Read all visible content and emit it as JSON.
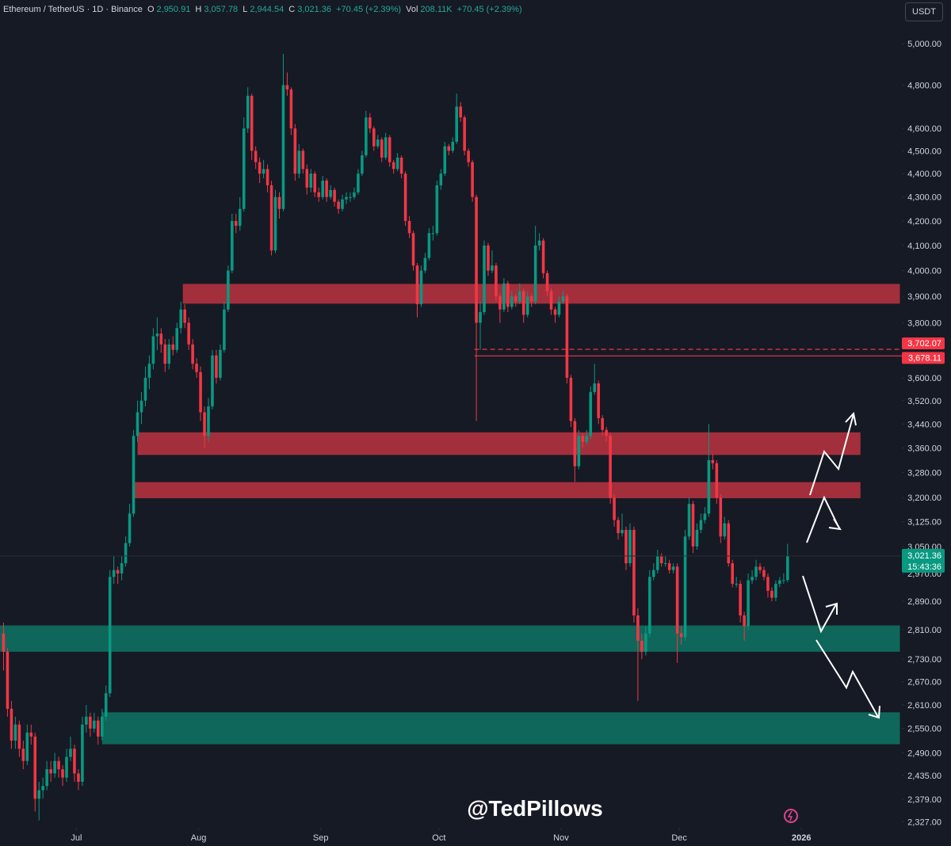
{
  "header": {
    "symbol": "Ethereum / TetherUS · 1D · Binance",
    "open_key": "O",
    "open": "2,950.91",
    "high_key": "H",
    "high": "3,057.78",
    "low_key": "L",
    "low": "2,944.54",
    "close_key": "C",
    "close": "3,021.36",
    "change": "+70.45 (+2.39%)",
    "vol_key": "Vol",
    "vol": "208.11K",
    "vol_change": "+70.45 (+2.39%)"
  },
  "currency_button": "USDT",
  "watermark": "@TedPillows",
  "chart_data": {
    "type": "candlestick",
    "log_scale": true,
    "up_color": "#089981",
    "down_color": "#f23645",
    "xlim": [
      -0.4,
      228.5
    ],
    "ylim": [
      2313,
      5219
    ],
    "xticks": [
      {
        "value": 19,
        "label": "Jul"
      },
      {
        "value": 50,
        "label": "Aug"
      },
      {
        "value": 81,
        "label": "Sep"
      },
      {
        "value": 111,
        "label": "Oct"
      },
      {
        "value": 142,
        "label": "Nov"
      },
      {
        "value": 172,
        "label": "Dec"
      },
      {
        "value": 203,
        "label": "2026"
      }
    ],
    "yticks": [
      {
        "value": 5000,
        "label": "5,000.00"
      },
      {
        "value": 4800,
        "label": "4,800.00"
      },
      {
        "value": 4600,
        "label": "4,600.00"
      },
      {
        "value": 4500,
        "label": "4,500.00"
      },
      {
        "value": 4400,
        "label": "4,400.00"
      },
      {
        "value": 4300,
        "label": "4,300.00"
      },
      {
        "value": 4200,
        "label": "4,200.00"
      },
      {
        "value": 4100,
        "label": "4,100.00"
      },
      {
        "value": 4000,
        "label": "4,000.00"
      },
      {
        "value": 3900,
        "label": "3,900.00"
      },
      {
        "value": 3800,
        "label": "3,800.00"
      },
      {
        "value": 3600,
        "label": "3,600.00"
      },
      {
        "value": 3520,
        "label": "3,520.00"
      },
      {
        "value": 3440,
        "label": "3,440.00"
      },
      {
        "value": 3360,
        "label": "3,360.00"
      },
      {
        "value": 3280,
        "label": "3,280.00"
      },
      {
        "value": 3200,
        "label": "3,200.00"
      },
      {
        "value": 3125,
        "label": "3,125.00"
      },
      {
        "value": 3050,
        "label": "3,050.00"
      },
      {
        "value": 2970,
        "label": "2,970.00"
      },
      {
        "value": 2890,
        "label": "2,890.00"
      },
      {
        "value": 2810,
        "label": "2,810.00"
      },
      {
        "value": 2730,
        "label": "2,730.00"
      },
      {
        "value": 2670,
        "label": "2,670.00"
      },
      {
        "value": 2610,
        "label": "2,610.00"
      },
      {
        "value": 2550,
        "label": "2,550.00"
      },
      {
        "value": 2490,
        "label": "2,490.00"
      },
      {
        "value": 2435,
        "label": "2,435.00"
      },
      {
        "value": 2379,
        "label": "2,379.00"
      },
      {
        "value": 2327,
        "label": "2,327.00"
      }
    ],
    "zones": [
      {
        "low": 3872,
        "high": 3948,
        "color": "#b2323f",
        "start": 46,
        "end": 228
      },
      {
        "low": 3337,
        "high": 3412,
        "color": "#b2323f",
        "start": 34.5,
        "end": 218
      },
      {
        "low": 3198,
        "high": 3249,
        "color": "#b2323f",
        "start": 33.5,
        "end": 218
      },
      {
        "low": 2750,
        "high": 2822,
        "color": "#0d7060",
        "start": -0.4,
        "end": 228
      },
      {
        "low": 2511,
        "high": 2591,
        "color": "#0d7060",
        "start": 25.5,
        "end": 228
      }
    ],
    "levels": [
      {
        "value": 3702.07,
        "label": "3,702.07",
        "style": "dashed",
        "start": 120
      },
      {
        "value": 3678.11,
        "label": "3,678.11",
        "style": "solid",
        "start": 120
      }
    ],
    "last_price": {
      "value": 3021.36,
      "label": "3,021.36",
      "countdown": "15:43:36"
    },
    "candles": [
      [
        2800,
        2830,
        2700,
        2750
      ],
      [
        2750,
        2760,
        2580,
        2600
      ],
      [
        2600,
        2620,
        2500,
        2520
      ],
      [
        2520,
        2580,
        2500,
        2560
      ],
      [
        2560,
        2570,
        2480,
        2500
      ],
      [
        2500,
        2520,
        2450,
        2470
      ],
      [
        2470,
        2560,
        2460,
        2540
      ],
      [
        2540,
        2560,
        2510,
        2530
      ],
      [
        2530,
        2540,
        2350,
        2380
      ],
      [
        2380,
        2420,
        2330,
        2400
      ],
      [
        2400,
        2430,
        2380,
        2410
      ],
      [
        2410,
        2470,
        2400,
        2450
      ],
      [
        2450,
        2470,
        2420,
        2440
      ],
      [
        2440,
        2490,
        2430,
        2470
      ],
      [
        2470,
        2480,
        2430,
        2450
      ],
      [
        2450,
        2460,
        2410,
        2430
      ],
      [
        2430,
        2500,
        2420,
        2480
      ],
      [
        2480,
        2530,
        2470,
        2500
      ],
      [
        2500,
        2510,
        2420,
        2440
      ],
      [
        2440,
        2450,
        2400,
        2420
      ],
      [
        2420,
        2580,
        2410,
        2560
      ],
      [
        2560,
        2610,
        2540,
        2580
      ],
      [
        2580,
        2590,
        2530,
        2550
      ],
      [
        2550,
        2590,
        2540,
        2570
      ],
      [
        2570,
        2580,
        2510,
        2530
      ],
      [
        2530,
        2600,
        2520,
        2580
      ],
      [
        2580,
        2660,
        2570,
        2640
      ],
      [
        2640,
        2980,
        2630,
        2960
      ],
      [
        2960,
        3020,
        2940,
        2980
      ],
      [
        2980,
        2990,
        2940,
        2970
      ],
      [
        2970,
        3020,
        2950,
        3000
      ],
      [
        3000,
        3080,
        2990,
        3060
      ],
      [
        3060,
        3180,
        3050,
        3150
      ],
      [
        3150,
        3420,
        3140,
        3400
      ],
      [
        3400,
        3520,
        3380,
        3480
      ],
      [
        3480,
        3550,
        3440,
        3520
      ],
      [
        3520,
        3640,
        3500,
        3600
      ],
      [
        3600,
        3680,
        3560,
        3650
      ],
      [
        3650,
        3780,
        3630,
        3750
      ],
      [
        3750,
        3820,
        3700,
        3760
      ],
      [
        3760,
        3780,
        3690,
        3720
      ],
      [
        3720,
        3740,
        3620,
        3650
      ],
      [
        3650,
        3740,
        3630,
        3720
      ],
      [
        3720,
        3750,
        3680,
        3700
      ],
      [
        3700,
        3800,
        3690,
        3780
      ],
      [
        3780,
        3880,
        3760,
        3850
      ],
      [
        3850,
        3870,
        3780,
        3800
      ],
      [
        3800,
        3820,
        3700,
        3720
      ],
      [
        3720,
        3740,
        3630,
        3650
      ],
      [
        3650,
        3670,
        3600,
        3620
      ],
      [
        3620,
        3640,
        3450,
        3480
      ],
      [
        3480,
        3500,
        3360,
        3400
      ],
      [
        3400,
        3530,
        3380,
        3500
      ],
      [
        3500,
        3700,
        3490,
        3680
      ],
      [
        3680,
        3700,
        3580,
        3600
      ],
      [
        3600,
        3720,
        3590,
        3700
      ],
      [
        3700,
        3880,
        3690,
        3850
      ],
      [
        3850,
        4020,
        3840,
        4000
      ],
      [
        4000,
        4230,
        3990,
        4200
      ],
      [
        4200,
        4230,
        4150,
        4180
      ],
      [
        4180,
        4300,
        4160,
        4250
      ],
      [
        4250,
        4650,
        4240,
        4600
      ],
      [
        4600,
        4790,
        4580,
        4750
      ],
      [
        4750,
        4760,
        4460,
        4500
      ],
      [
        4500,
        4520,
        4420,
        4450
      ],
      [
        4450,
        4470,
        4360,
        4400
      ],
      [
        4400,
        4460,
        4380,
        4420
      ],
      [
        4420,
        4440,
        4320,
        4350
      ],
      [
        4350,
        4370,
        4060,
        4080
      ],
      [
        4080,
        4330,
        4070,
        4300
      ],
      [
        4300,
        4320,
        4210,
        4250
      ],
      [
        4250,
        4950,
        4240,
        4800
      ],
      [
        4800,
        4860,
        4750,
        4780
      ],
      [
        4780,
        4790,
        4570,
        4600
      ],
      [
        4600,
        4620,
        4370,
        4400
      ],
      [
        4400,
        4530,
        4380,
        4500
      ],
      [
        4500,
        4510,
        4400,
        4420
      ],
      [
        4420,
        4440,
        4310,
        4340
      ],
      [
        4340,
        4420,
        4320,
        4400
      ],
      [
        4400,
        4410,
        4300,
        4320
      ],
      [
        4320,
        4340,
        4280,
        4300
      ],
      [
        4300,
        4390,
        4290,
        4370
      ],
      [
        4370,
        4380,
        4280,
        4300
      ],
      [
        4300,
        4350,
        4290,
        4330
      ],
      [
        4330,
        4340,
        4260,
        4280
      ],
      [
        4280,
        4290,
        4230,
        4250
      ],
      [
        4250,
        4310,
        4240,
        4290
      ],
      [
        4290,
        4320,
        4270,
        4300
      ],
      [
        4300,
        4320,
        4280,
        4300
      ],
      [
        4300,
        4340,
        4290,
        4320
      ],
      [
        4320,
        4420,
        4310,
        4400
      ],
      [
        4400,
        4500,
        4390,
        4480
      ],
      [
        4480,
        4680,
        4470,
        4650
      ],
      [
        4650,
        4670,
        4580,
        4600
      ],
      [
        4600,
        4610,
        4500,
        4520
      ],
      [
        4520,
        4570,
        4510,
        4550
      ],
      [
        4550,
        4560,
        4450,
        4470
      ],
      [
        4470,
        4580,
        4460,
        4560
      ],
      [
        4560,
        4570,
        4430,
        4450
      ],
      [
        4450,
        4460,
        4400,
        4420
      ],
      [
        4420,
        4490,
        4410,
        4470
      ],
      [
        4470,
        4480,
        4380,
        4400
      ],
      [
        4400,
        4410,
        4180,
        4200
      ],
      [
        4200,
        4220,
        4130,
        4150
      ],
      [
        4150,
        4160,
        4000,
        4020
      ],
      [
        4020,
        4030,
        3820,
        3870
      ],
      [
        3870,
        4020,
        3860,
        4000
      ],
      [
        4000,
        4070,
        3990,
        4050
      ],
      [
        4050,
        4170,
        4040,
        4150
      ],
      [
        4150,
        4180,
        4120,
        4150
      ],
      [
        4150,
        4370,
        4140,
        4350
      ],
      [
        4350,
        4420,
        4330,
        4400
      ],
      [
        4400,
        4540,
        4390,
        4520
      ],
      [
        4520,
        4530,
        4480,
        4500
      ],
      [
        4500,
        4560,
        4490,
        4540
      ],
      [
        4540,
        4760,
        4530,
        4700
      ],
      [
        4700,
        4720,
        4630,
        4650
      ],
      [
        4650,
        4660,
        4480,
        4500
      ],
      [
        4500,
        4510,
        4430,
        4450
      ],
      [
        4450,
        4460,
        4280,
        4300
      ],
      [
        4300,
        4310,
        3450,
        3800
      ],
      [
        3800,
        3880,
        3700,
        3840
      ],
      [
        3840,
        4120,
        3830,
        4100
      ],
      [
        4100,
        4110,
        3980,
        4000
      ],
      [
        4000,
        4080,
        3990,
        4020
      ],
      [
        4020,
        4030,
        3880,
        3900
      ],
      [
        3900,
        3910,
        3800,
        3850
      ],
      [
        3850,
        3970,
        3840,
        3950
      ],
      [
        3950,
        3960,
        3840,
        3860
      ],
      [
        3860,
        3920,
        3850,
        3900
      ],
      [
        3900,
        3910,
        3860,
        3880
      ],
      [
        3880,
        3950,
        3870,
        3920
      ],
      [
        3920,
        3930,
        3800,
        3830
      ],
      [
        3830,
        3920,
        3820,
        3900
      ],
      [
        3900,
        3910,
        3860,
        3880
      ],
      [
        3880,
        4180,
        3870,
        4100
      ],
      [
        4100,
        4150,
        4080,
        4120
      ],
      [
        4120,
        4130,
        3970,
        3990
      ],
      [
        3990,
        4000,
        3900,
        3920
      ],
      [
        3920,
        3930,
        3830,
        3850
      ],
      [
        3850,
        3860,
        3800,
        3830
      ],
      [
        3830,
        3900,
        3820,
        3880
      ],
      [
        3880,
        3920,
        3870,
        3900
      ],
      [
        3900,
        3910,
        3580,
        3600
      ],
      [
        3600,
        3610,
        3430,
        3450
      ],
      [
        3450,
        3460,
        3250,
        3300
      ],
      [
        3300,
        3420,
        3290,
        3400
      ],
      [
        3400,
        3410,
        3360,
        3380
      ],
      [
        3380,
        3420,
        3370,
        3400
      ],
      [
        3400,
        3570,
        3390,
        3550
      ],
      [
        3550,
        3650,
        3540,
        3580
      ],
      [
        3580,
        3590,
        3440,
        3460
      ],
      [
        3460,
        3470,
        3400,
        3420
      ],
      [
        3420,
        3430,
        3380,
        3400
      ],
      [
        3400,
        3410,
        3180,
        3200
      ],
      [
        3200,
        3210,
        3110,
        3130
      ],
      [
        3130,
        3140,
        3070,
        3090
      ],
      [
        3090,
        3150,
        3080,
        3100
      ],
      [
        3100,
        3110,
        2980,
        3000
      ],
      [
        3000,
        3120,
        2990,
        3100
      ],
      [
        3100,
        3110,
        2830,
        2850
      ],
      [
        2850,
        2870,
        2620,
        2780
      ],
      [
        2780,
        2800,
        2730,
        2750
      ],
      [
        2750,
        2820,
        2740,
        2800
      ],
      [
        2800,
        2980,
        2790,
        2960
      ],
      [
        2960,
        3000,
        2950,
        2980
      ],
      [
        2980,
        3040,
        2970,
        3020
      ],
      [
        3020,
        3030,
        2990,
        3000
      ],
      [
        3000,
        3020,
        2990,
        3000
      ],
      [
        3000,
        3010,
        2970,
        2980
      ],
      [
        2980,
        3000,
        2970,
        2990
      ],
      [
        2990,
        3000,
        2720,
        2800
      ],
      [
        2800,
        2820,
        2770,
        2790
      ],
      [
        2790,
        3100,
        2780,
        3080
      ],
      [
        3080,
        3200,
        3070,
        3180
      ],
      [
        3180,
        3190,
        3030,
        3050
      ],
      [
        3050,
        3120,
        3040,
        3100
      ],
      [
        3100,
        3150,
        3090,
        3130
      ],
      [
        3130,
        3170,
        3120,
        3150
      ],
      [
        3150,
        3440,
        3140,
        3320
      ],
      [
        3320,
        3340,
        3290,
        3310
      ],
      [
        3310,
        3320,
        3180,
        3200
      ],
      [
        3200,
        3210,
        3060,
        3080
      ],
      [
        3080,
        3140,
        3070,
        3120
      ],
      [
        3120,
        3130,
        2990,
        3000
      ],
      [
        3000,
        3010,
        2930,
        2940
      ],
      [
        2940,
        2960,
        2930,
        2940
      ],
      [
        2940,
        2950,
        2830,
        2850
      ],
      [
        2850,
        2860,
        2780,
        2820
      ],
      [
        2820,
        2970,
        2810,
        2950
      ],
      [
        2950,
        2980,
        2940,
        2960
      ],
      [
        2960,
        3010,
        2950,
        2990
      ],
      [
        2990,
        3000,
        2970,
        2980
      ],
      [
        2980,
        2990,
        2950,
        2960
      ],
      [
        2960,
        2970,
        2900,
        2920
      ],
      [
        2920,
        2930,
        2890,
        2900
      ],
      [
        2900,
        2950,
        2890,
        2940
      ],
      [
        2940,
        2960,
        2930,
        2950
      ],
      [
        2950,
        2970,
        2940,
        2950.91
      ],
      [
        2950.91,
        3057.78,
        2944.54,
        3021.36
      ]
    ]
  }
}
